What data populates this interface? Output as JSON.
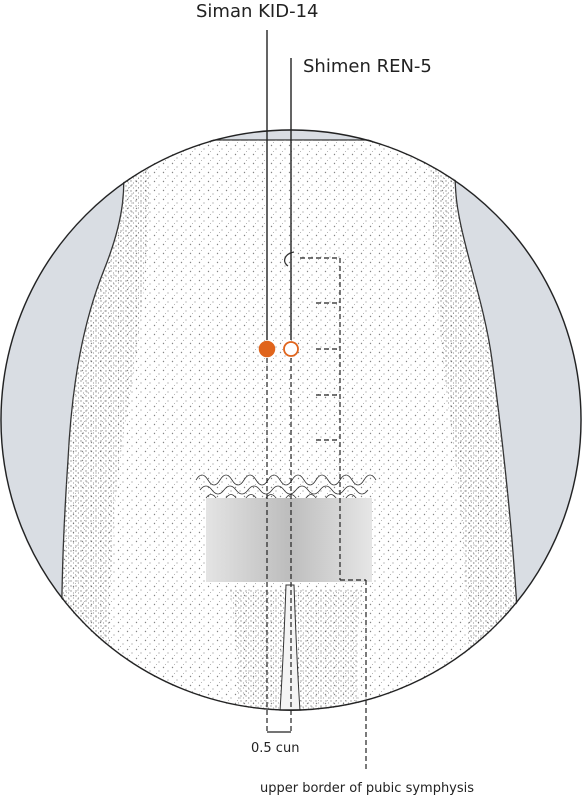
{
  "labels": {
    "siman": "Siman KID-14",
    "shimen": "Shimen REN-5",
    "half_cun": "0.5 cun",
    "pubic": "upper border of pubic symphysis"
  },
  "colors": {
    "point_filled": "#e0641c",
    "point_hollow": "#e0641c",
    "background_band": "#d9dde3",
    "lines": "#222222",
    "skin_stipple": "#555555"
  },
  "points": [
    {
      "name": "Siman KID-14",
      "style": "filled"
    },
    {
      "name": "Shimen REN-5",
      "style": "hollow"
    }
  ]
}
